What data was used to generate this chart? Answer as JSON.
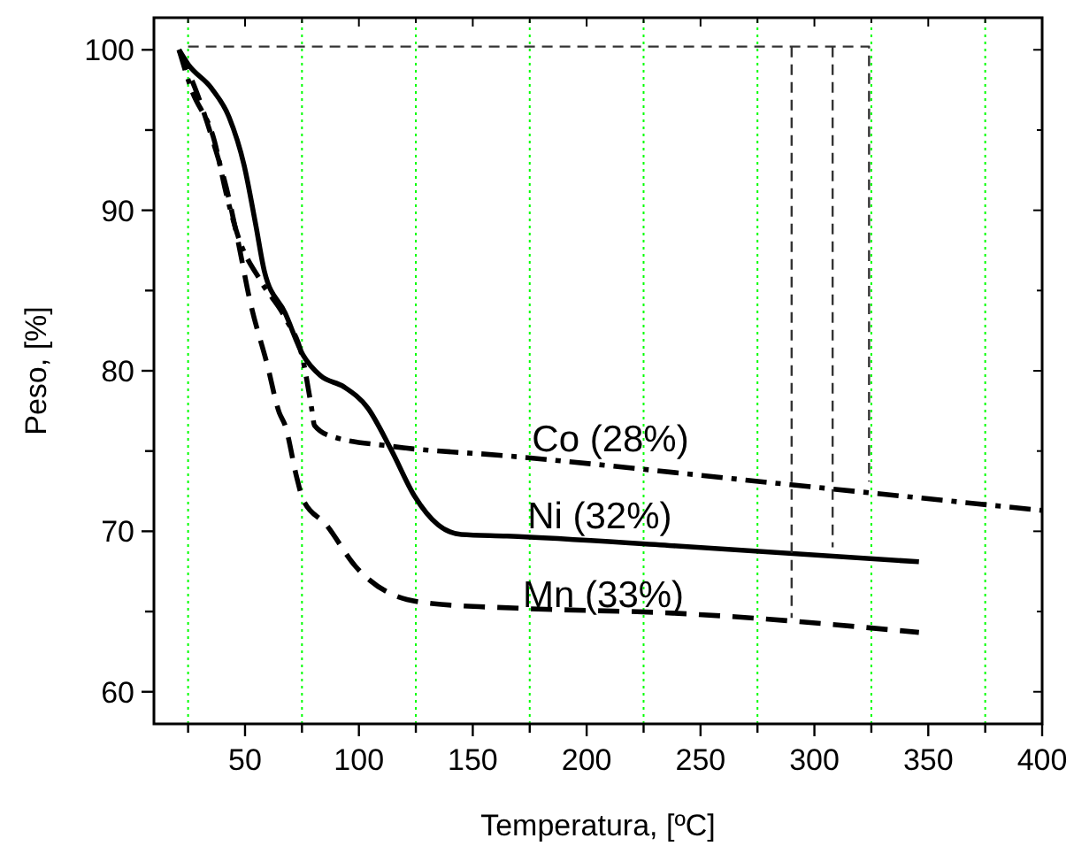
{
  "chart_data": {
    "type": "line",
    "xlabel": "Temperatura, [ºC]",
    "ylabel": "Peso, [%]",
    "xlim": [
      10,
      400
    ],
    "ylim": [
      58,
      102
    ],
    "xticks": [
      {
        "value": 25,
        "label": null
      },
      50,
      {
        "value": 75,
        "label": null
      },
      100,
      {
        "value": 125,
        "label": null
      },
      150,
      {
        "value": 175,
        "label": null
      },
      200,
      {
        "value": 225,
        "label": null
      },
      250,
      {
        "value": 275,
        "label": null
      },
      300,
      {
        "value": 325,
        "label": null
      },
      350,
      {
        "value": 375,
        "label": null
      },
      400
    ],
    "yticks": [
      60,
      {
        "value": 65,
        "label": null
      },
      70,
      {
        "value": 75,
        "label": null
      },
      80,
      {
        "value": 85,
        "label": null
      },
      90,
      {
        "value": 95,
        "label": null
      },
      100
    ],
    "series": [
      {
        "color": "#000000",
        "line_style": "solid",
        "x": [
          21,
          25,
          35.3,
          43,
          49.6,
          54.7,
          58.5,
          67.6,
          75.4,
          83.1,
          93.4,
          103.8,
          114.1,
          124.4,
          134.8,
          145,
          165,
          238,
          345.9
        ],
        "values": [
          100,
          99.1,
          97.6,
          95.8,
          92.8,
          89.1,
          86.2,
          83.6,
          81,
          79.7,
          79,
          77.7,
          75.1,
          72.2,
          70.4,
          69.8,
          69.7,
          69.1,
          68.1
        ]
      },
      {
        "color": "#000000",
        "line_style": "dashdot",
        "x": [
          21,
          26.3,
          36.6,
          41.8,
          46.9,
          57.3,
          67.6,
          75.4,
          79.2,
          80.5,
          88.3,
          114,
          165,
          289.7,
          400
        ],
        "values": [
          100,
          97.6,
          94.3,
          91,
          88.4,
          85.5,
          83.3,
          80.7,
          77.7,
          76.6,
          75.9,
          75.3,
          74.7,
          72.9,
          71.3
        ]
      },
      {
        "color": "#000000",
        "line_style": "dashed",
        "x": [
          21,
          23.7,
          28.9,
          36.6,
          41.8,
          46.9,
          52.1,
          59.9,
          65,
          67.6,
          72.8,
          75.4,
          85.7,
          98.6,
          114.1,
          132.1,
          170.9,
          238,
          345.9
        ],
        "values": [
          100,
          99.1,
          97.3,
          94,
          91.4,
          88.1,
          84.4,
          80.3,
          77.4,
          76.6,
          73.3,
          72,
          70.4,
          67.8,
          66.1,
          65.5,
          65.2,
          64.9,
          63.7
        ]
      },
      {
        "color": "#333333",
        "line_style": "dashed",
        "x": [
          25,
          324,
          324
        ],
        "values": [
          100.2,
          100.2,
          73.1
        ]
      },
      {
        "color": "#333333",
        "line_style": "dashed",
        "x": [
          308,
          308
        ],
        "values": [
          100.2,
          69
        ]
      },
      {
        "color": "#333333",
        "line_style": "dashed",
        "x": [
          290,
          290
        ],
        "values": [
          100.2,
          64.6
        ]
      }
    ],
    "ref_lines": [
      {
        "axis": "x",
        "value": 25,
        "color": "#00ff00",
        "line_style": "dotted"
      },
      {
        "axis": "x",
        "value": 75,
        "color": "#00ff00",
        "line_style": "dotted"
      },
      {
        "axis": "x",
        "value": 125,
        "color": "#00ff00",
        "line_style": "dotted"
      },
      {
        "axis": "x",
        "value": 175,
        "color": "#00ff00",
        "line_style": "dotted"
      },
      {
        "axis": "x",
        "value": 225,
        "color": "#00ff00",
        "line_style": "dotted"
      },
      {
        "axis": "x",
        "value": 275,
        "color": "#00ff00",
        "line_style": "dotted"
      },
      {
        "axis": "x",
        "value": 325,
        "color": "#00ff00",
        "line_style": "dotted"
      },
      {
        "axis": "x",
        "value": 375,
        "color": "#00ff00",
        "line_style": "dotted"
      }
    ],
    "annotations": [
      {
        "text": "Co (28%)",
        "x": 176,
        "y": 75
      },
      {
        "text": "Ni (32%)",
        "x": 174,
        "y": 70.2
      },
      {
        "text": "Mn (33%)",
        "x": 172,
        "y": 65.3
      }
    ]
  }
}
